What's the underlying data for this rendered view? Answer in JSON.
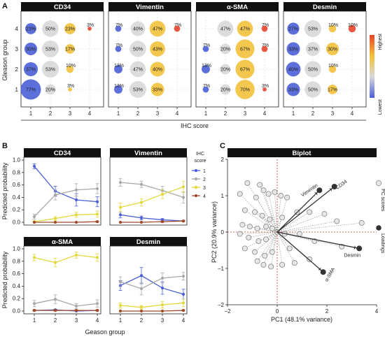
{
  "panel_letters": [
    "A",
    "B",
    "C"
  ],
  "chart_data": [
    {
      "type": "bubble",
      "panel": "A",
      "facets": [
        "CD34",
        "Vimentin",
        "α-SMA",
        "Desmin"
      ],
      "xlabel": "IHC score",
      "ylabel": "Gleason group",
      "x_ticks": [
        "1",
        "2",
        "3",
        "4"
      ],
      "y_ticks": [
        "1",
        "2",
        "3",
        "4"
      ],
      "legend": {
        "high": "Highest",
        "low": "Lowest",
        "colors": [
          "#4a5fd6",
          "#d8d8d8",
          "#f3c23c",
          "#e8452b"
        ]
      },
      "values": {
        "CD34": [
          [
            77,
            20,
            3,
            0
          ],
          [
            37,
            53,
            10,
            0
          ],
          [
            30,
            53,
            17,
            0
          ],
          [
            23,
            50,
            23,
            3
          ]
        ],
        "Vimentin": [
          [
            13,
            53,
            33,
            0
          ],
          [
            13,
            47,
            40,
            0
          ],
          [
            7,
            50,
            43,
            0
          ],
          [
            7,
            40,
            47,
            7
          ]
        ],
        "α-SMA": [
          [
            7,
            20,
            70,
            3
          ],
          [
            13,
            20,
            67,
            0
          ],
          [
            7,
            20,
            67,
            7
          ],
          [
            0,
            47,
            47,
            7
          ]
        ],
        "Desmin": [
          [
            33,
            50,
            17,
            0
          ],
          [
            40,
            50,
            10,
            0
          ],
          [
            33,
            37,
            30,
            0
          ],
          [
            27,
            53,
            10,
            10
          ]
        ]
      }
    },
    {
      "type": "line",
      "panel": "B",
      "facets": [
        "CD34",
        "Vimentin",
        "α-SMA",
        "Desmin"
      ],
      "xlabel": "Geason group",
      "ylabel": "Predicted probability",
      "x": [
        1,
        2,
        3,
        4
      ],
      "ylim": [
        0,
        1
      ],
      "y_ticks": [
        "0.0",
        "0.2",
        "0.4",
        "0.6",
        "0.8",
        "1.0"
      ],
      "legend_title": "IHC score",
      "legend_title2": "score",
      "legend_labels": [
        "1",
        "2",
        "3",
        "4"
      ],
      "colors": [
        "#4a5fd6",
        "#a8a8a8",
        "#e2d83a",
        "#a04a2a"
      ],
      "series": {
        "CD34": [
          {
            "values": [
              0.9,
              0.5,
              0.36,
              0.33
            ],
            "err": [
              0.04,
              0.08,
              0.1,
              0.08
            ]
          },
          {
            "values": [
              0.09,
              0.44,
              0.52,
              0.54
            ],
            "err": [
              0.04,
              0.08,
              0.1,
              0.08
            ]
          },
          {
            "values": [
              0.01,
              0.06,
              0.12,
              0.13
            ],
            "err": [
              0.01,
              0.03,
              0.04,
              0.05
            ]
          },
          {
            "values": [
              0.0,
              0.0,
              0.0,
              0.01
            ],
            "err": [
              0.0,
              0.0,
              0.0,
              0.01
            ]
          }
        ],
        "Vimentin": [
          {
            "values": [
              0.12,
              0.07,
              0.04,
              0.02
            ],
            "err": [
              0.05,
              0.03,
              0.02,
              0.01
            ]
          },
          {
            "values": [
              0.64,
              0.61,
              0.51,
              0.4
            ],
            "err": [
              0.06,
              0.05,
              0.07,
              0.09
            ]
          },
          {
            "values": [
              0.24,
              0.32,
              0.45,
              0.57
            ],
            "err": [
              0.07,
              0.06,
              0.07,
              0.09
            ]
          },
          {
            "values": [
              0.0,
              0.0,
              0.01,
              0.02
            ],
            "err": [
              0.0,
              0.0,
              0.01,
              0.01
            ]
          }
        ],
        "α-SMA": [
          {
            "values": [
              0.01,
              0.02,
              0.0,
              0.01
            ],
            "err": [
              0.01,
              0.01,
              0.0,
              0.01
            ]
          },
          {
            "values": [
              0.12,
              0.19,
              0.08,
              0.12
            ],
            "err": [
              0.05,
              0.07,
              0.04,
              0.06
            ]
          },
          {
            "values": [
              0.86,
              0.78,
              0.9,
              0.86
            ],
            "err": [
              0.05,
              0.07,
              0.05,
              0.06
            ]
          },
          {
            "values": [
              0.01,
              0.01,
              0.01,
              0.01
            ],
            "err": [
              0.01,
              0.01,
              0.01,
              0.01
            ]
          }
        ],
        "Desmin": [
          {
            "values": [
              0.41,
              0.57,
              0.37,
              0.27
            ],
            "err": [
              0.08,
              0.13,
              0.1,
              0.08
            ]
          },
          {
            "values": [
              0.47,
              0.36,
              0.53,
              0.56
            ],
            "err": [
              0.08,
              0.1,
              0.08,
              0.06
            ]
          },
          {
            "values": [
              0.09,
              0.06,
              0.1,
              0.13
            ],
            "err": [
              0.04,
              0.03,
              0.05,
              0.06
            ]
          },
          {
            "values": [
              0.0,
              0.0,
              0.0,
              0.01
            ],
            "err": [
              0.0,
              0.0,
              0.0,
              0.01
            ]
          }
        ]
      }
    },
    {
      "type": "scatter",
      "panel": "C",
      "title": "Biplot",
      "xlabel": "PC1 (48.1% variance)",
      "ylabel": "PC2 (20.9% variance)",
      "xlim": [
        -2,
        4
      ],
      "ylim": [
        -2,
        2
      ],
      "x_ticks": [
        "−2",
        "0",
        "2",
        "4"
      ],
      "y_ticks": [
        "−2",
        "−1",
        "0",
        "1",
        "2"
      ],
      "legend": [
        "PC scores",
        "Loadings"
      ],
      "loadings": [
        {
          "label": "Vimentin",
          "x": 1.7,
          "y": 1.15
        },
        {
          "label": "CD34",
          "x": 2.3,
          "y": 1.25
        },
        {
          "label": "Desmin",
          "x": 3.3,
          "y": -0.45
        },
        {
          "label": "α-SMA",
          "x": 1.85,
          "y": -1.1
        }
      ],
      "scores": [
        [
          -1.2,
          1.35
        ],
        [
          -1.5,
          1.05
        ],
        [
          -0.7,
          1.3
        ],
        [
          -0.55,
          1.15
        ],
        [
          -0.35,
          1.05
        ],
        [
          -0.1,
          1.1
        ],
        [
          0.15,
          1.0
        ],
        [
          0.4,
          0.95
        ],
        [
          -0.85,
          0.95
        ],
        [
          -1.3,
          0.6
        ],
        [
          -0.9,
          0.55
        ],
        [
          -0.6,
          0.45
        ],
        [
          -0.3,
          0.35
        ],
        [
          0.2,
          0.4
        ],
        [
          0.8,
          0.55
        ],
        [
          1.3,
          0.55
        ],
        [
          1.9,
          0.5
        ],
        [
          -1.4,
          0.2
        ],
        [
          -1.1,
          0.15
        ],
        [
          -0.8,
          0.1
        ],
        [
          -0.45,
          0.15
        ],
        [
          -0.2,
          0.1
        ],
        [
          2.4,
          0.3
        ],
        [
          3.4,
          0.25
        ],
        [
          -1.5,
          -0.05
        ],
        [
          -1.15,
          -0.15
        ],
        [
          -0.75,
          -0.25
        ],
        [
          -0.45,
          -0.2
        ],
        [
          0.3,
          -0.05
        ],
        [
          0.9,
          -0.05
        ],
        [
          -1.3,
          -0.45
        ],
        [
          -0.9,
          -0.55
        ],
        [
          -0.5,
          -0.65
        ],
        [
          -0.2,
          -0.55
        ],
        [
          0.5,
          -0.45
        ],
        [
          1.5,
          -0.25
        ],
        [
          2.6,
          -0.4
        ],
        [
          -0.8,
          -0.8
        ],
        [
          -0.55,
          -0.9
        ],
        [
          -0.25,
          -0.95
        ],
        [
          0.2,
          -0.9
        ],
        [
          0.7,
          -0.85
        ],
        [
          1.3,
          -0.75
        ]
      ]
    }
  ]
}
